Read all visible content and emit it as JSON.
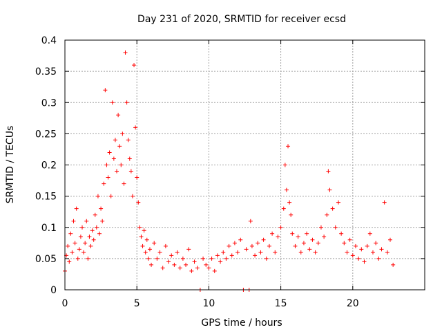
{
  "chart_data": {
    "type": "scatter",
    "title": "Day 231 of 2020, SRMTID for receiver ecsd",
    "xlabel": "GPS time / hours",
    "ylabel": "SRMTID / TECUs",
    "xlim": [
      0,
      25
    ],
    "ylim": [
      0,
      0.4
    ],
    "xticks": [
      0,
      5,
      10,
      15,
      20
    ],
    "yticks": [
      0,
      0.05,
      0.1,
      0.15,
      0.2,
      0.25,
      0.3,
      0.35,
      0.4
    ],
    "xtick_labels": [
      "0",
      "5",
      "10",
      "15",
      "20"
    ],
    "ytick_labels": [
      "0",
      "0.05",
      "0.1",
      "0.15",
      "0.2",
      "0.25",
      "0.3",
      "0.35",
      "0.4"
    ],
    "grid": true,
    "marker": "+",
    "color": "#ff0000",
    "series": [
      {
        "name": "SRMTID",
        "points": [
          [
            0.0,
            0.03
          ],
          [
            0.1,
            0.055
          ],
          [
            0.2,
            0.07
          ],
          [
            0.3,
            0.045
          ],
          [
            0.4,
            0.09
          ],
          [
            0.5,
            0.06
          ],
          [
            0.6,
            0.11
          ],
          [
            0.7,
            0.075
          ],
          [
            0.8,
            0.13
          ],
          [
            0.9,
            0.05
          ],
          [
            1.0,
            0.065
          ],
          [
            1.1,
            0.085
          ],
          [
            1.2,
            0.1
          ],
          [
            1.3,
            0.06
          ],
          [
            1.4,
            0.075
          ],
          [
            1.5,
            0.11
          ],
          [
            1.6,
            0.05
          ],
          [
            1.7,
            0.085
          ],
          [
            1.8,
            0.07
          ],
          [
            1.9,
            0.095
          ],
          [
            2.0,
            0.08
          ],
          [
            2.1,
            0.12
          ],
          [
            2.2,
            0.1
          ],
          [
            2.3,
            0.15
          ],
          [
            2.4,
            0.09
          ],
          [
            2.5,
            0.13
          ],
          [
            2.6,
            0.11
          ],
          [
            2.7,
            0.17
          ],
          [
            2.8,
            0.32
          ],
          [
            2.9,
            0.2
          ],
          [
            3.0,
            0.18
          ],
          [
            3.1,
            0.22
          ],
          [
            3.2,
            0.15
          ],
          [
            3.3,
            0.3
          ],
          [
            3.4,
            0.21
          ],
          [
            3.5,
            0.24
          ],
          [
            3.6,
            0.19
          ],
          [
            3.7,
            0.28
          ],
          [
            3.8,
            0.23
          ],
          [
            3.9,
            0.2
          ],
          [
            4.0,
            0.25
          ],
          [
            4.1,
            0.17
          ],
          [
            4.2,
            0.38
          ],
          [
            4.3,
            0.3
          ],
          [
            4.4,
            0.24
          ],
          [
            4.5,
            0.21
          ],
          [
            4.6,
            0.19
          ],
          [
            4.7,
            0.15
          ],
          [
            4.8,
            0.36
          ],
          [
            4.9,
            0.26
          ],
          [
            5.0,
            0.18
          ],
          [
            5.1,
            0.14
          ],
          [
            5.2,
            0.1
          ],
          [
            5.3,
            0.085
          ],
          [
            5.4,
            0.07
          ],
          [
            5.5,
            0.095
          ],
          [
            5.6,
            0.06
          ],
          [
            5.7,
            0.08
          ],
          [
            5.8,
            0.05
          ],
          [
            5.9,
            0.065
          ],
          [
            6.0,
            0.04
          ],
          [
            6.2,
            0.075
          ],
          [
            6.4,
            0.05
          ],
          [
            6.6,
            0.06
          ],
          [
            6.8,
            0.035
          ],
          [
            7.0,
            0.07
          ],
          [
            7.2,
            0.045
          ],
          [
            7.4,
            0.055
          ],
          [
            7.6,
            0.04
          ],
          [
            7.8,
            0.06
          ],
          [
            8.0,
            0.035
          ],
          [
            8.2,
            0.05
          ],
          [
            8.4,
            0.04
          ],
          [
            8.6,
            0.065
          ],
          [
            8.8,
            0.03
          ],
          [
            9.0,
            0.045
          ],
          [
            9.2,
            0.035
          ],
          [
            9.4,
            0.0
          ],
          [
            9.6,
            0.05
          ],
          [
            9.8,
            0.04
          ],
          [
            10.0,
            0.035
          ],
          [
            10.2,
            0.05
          ],
          [
            10.4,
            0.03
          ],
          [
            10.6,
            0.055
          ],
          [
            10.8,
            0.045
          ],
          [
            11.0,
            0.06
          ],
          [
            11.2,
            0.05
          ],
          [
            11.4,
            0.07
          ],
          [
            11.6,
            0.055
          ],
          [
            11.8,
            0.075
          ],
          [
            12.0,
            0.06
          ],
          [
            12.2,
            0.08
          ],
          [
            12.4,
            0.0
          ],
          [
            12.6,
            0.065
          ],
          [
            12.8,
            0.0
          ],
          [
            12.9,
            0.11
          ],
          [
            13.0,
            0.07
          ],
          [
            13.2,
            0.055
          ],
          [
            13.4,
            0.075
          ],
          [
            13.6,
            0.06
          ],
          [
            13.8,
            0.08
          ],
          [
            14.0,
            0.05
          ],
          [
            14.2,
            0.07
          ],
          [
            14.4,
            0.09
          ],
          [
            14.6,
            0.06
          ],
          [
            14.8,
            0.085
          ],
          [
            15.0,
            0.1
          ],
          [
            15.2,
            0.13
          ],
          [
            15.3,
            0.2
          ],
          [
            15.4,
            0.16
          ],
          [
            15.5,
            0.23
          ],
          [
            15.6,
            0.14
          ],
          [
            15.7,
            0.12
          ],
          [
            15.8,
            0.09
          ],
          [
            16.0,
            0.07
          ],
          [
            16.2,
            0.085
          ],
          [
            16.4,
            0.06
          ],
          [
            16.6,
            0.075
          ],
          [
            16.8,
            0.09
          ],
          [
            17.0,
            0.065
          ],
          [
            17.2,
            0.08
          ],
          [
            17.4,
            0.06
          ],
          [
            17.6,
            0.075
          ],
          [
            17.8,
            0.1
          ],
          [
            18.0,
            0.085
          ],
          [
            18.2,
            0.12
          ],
          [
            18.3,
            0.19
          ],
          [
            18.4,
            0.16
          ],
          [
            18.6,
            0.13
          ],
          [
            18.8,
            0.1
          ],
          [
            19.0,
            0.14
          ],
          [
            19.2,
            0.09
          ],
          [
            19.4,
            0.075
          ],
          [
            19.6,
            0.06
          ],
          [
            19.8,
            0.08
          ],
          [
            20.0,
            0.055
          ],
          [
            20.2,
            0.07
          ],
          [
            20.4,
            0.05
          ],
          [
            20.6,
            0.065
          ],
          [
            20.8,
            0.045
          ],
          [
            21.0,
            0.07
          ],
          [
            21.2,
            0.09
          ],
          [
            21.4,
            0.06
          ],
          [
            21.6,
            0.075
          ],
          [
            21.8,
            0.05
          ],
          [
            22.0,
            0.065
          ],
          [
            22.2,
            0.14
          ],
          [
            22.4,
            0.06
          ],
          [
            22.6,
            0.08
          ],
          [
            22.8,
            0.04
          ]
        ]
      }
    ]
  }
}
